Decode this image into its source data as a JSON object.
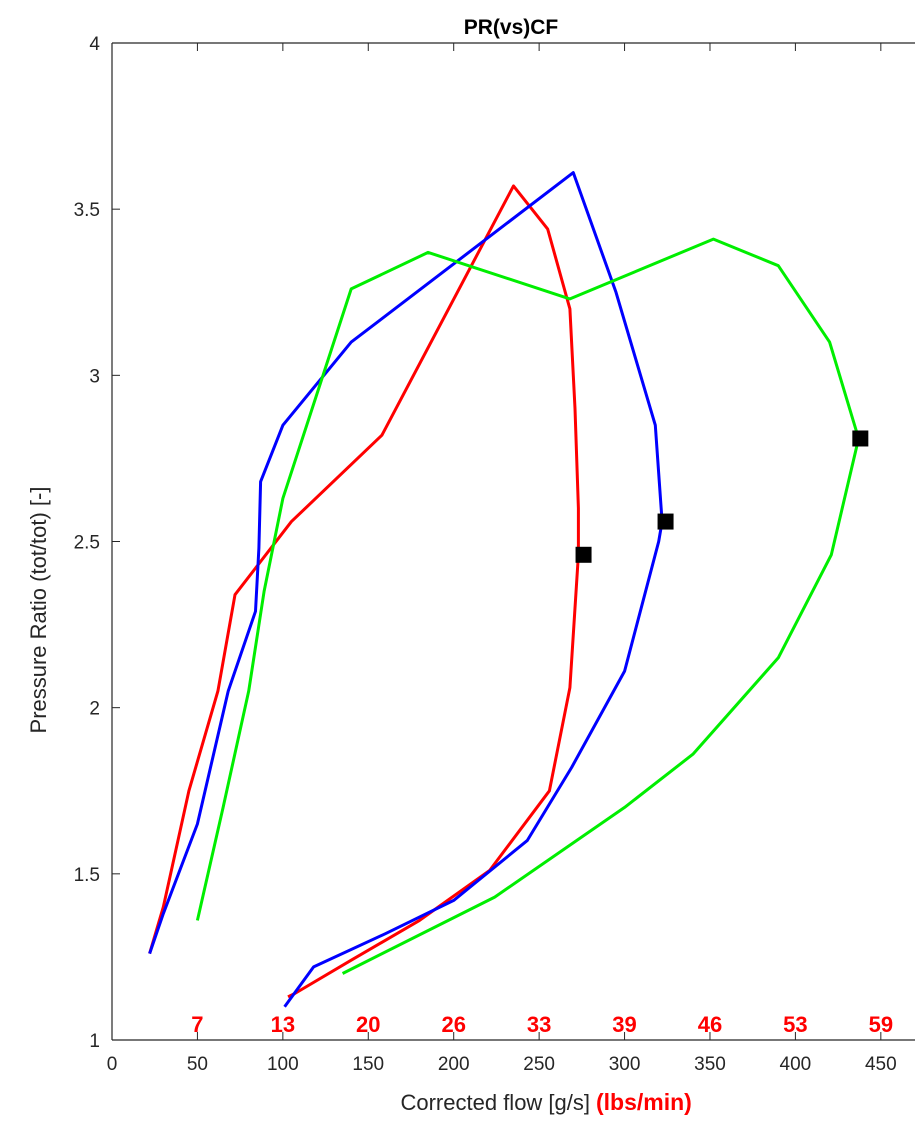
{
  "chart_data": {
    "type": "line",
    "title": "PR(vs)CF",
    "xlabel": "Corrected flow [g/s]",
    "xlabel_extra": "(lbs/min)",
    "ylabel": "Pressure Ratio (tot/tot) [-]",
    "xlim": [
      0,
      470
    ],
    "ylim": [
      1,
      4
    ],
    "xticks": [
      0,
      50,
      100,
      150,
      200,
      250,
      300,
      350,
      400,
      450
    ],
    "yticks": [
      1,
      1.5,
      2,
      2.5,
      3,
      3.5,
      4
    ],
    "grid": false,
    "secondary_x_labels": [
      {
        "x": 50,
        "text": "7"
      },
      {
        "x": 100,
        "text": "13"
      },
      {
        "x": 150,
        "text": "20"
      },
      {
        "x": 200,
        "text": "26"
      },
      {
        "x": 250,
        "text": "33"
      },
      {
        "x": 300,
        "text": "39"
      },
      {
        "x": 350,
        "text": "46"
      },
      {
        "x": 400,
        "text": "53"
      },
      {
        "x": 450,
        "text": "59"
      }
    ],
    "series": [
      {
        "color": "#ff0000",
        "points": [
          [
            22,
            1.26
          ],
          [
            30,
            1.4
          ],
          [
            45,
            1.75
          ],
          [
            62,
            2.05
          ],
          [
            72,
            2.34
          ],
          [
            105,
            2.56
          ],
          [
            158,
            2.82
          ],
          [
            235,
            3.57
          ],
          [
            255,
            3.44
          ],
          [
            268,
            3.2
          ],
          [
            271,
            2.9
          ],
          [
            273,
            2.6
          ],
          [
            273,
            2.46
          ],
          [
            268,
            2.06
          ],
          [
            256,
            1.75
          ],
          [
            221,
            1.51
          ],
          [
            180,
            1.36
          ],
          [
            140,
            1.24
          ],
          [
            107,
            1.14
          ],
          [
            103,
            1.13
          ]
        ],
        "marker": [
          276,
          2.46
        ]
      },
      {
        "color": "#0000ff",
        "points": [
          [
            22,
            1.26
          ],
          [
            30,
            1.38
          ],
          [
            50,
            1.65
          ],
          [
            68,
            2.05
          ],
          [
            84,
            2.29
          ],
          [
            86,
            2.48
          ],
          [
            87,
            2.68
          ],
          [
            100,
            2.85
          ],
          [
            140,
            3.1
          ],
          [
            270,
            3.61
          ],
          [
            295,
            3.25
          ],
          [
            318,
            2.85
          ],
          [
            322,
            2.56
          ],
          [
            320,
            2.5
          ],
          [
            300,
            2.11
          ],
          [
            269,
            1.82
          ],
          [
            243,
            1.6
          ],
          [
            200,
            1.42
          ],
          [
            160,
            1.32
          ],
          [
            118,
            1.22
          ],
          [
            101,
            1.1
          ]
        ],
        "marker": [
          324,
          2.56
        ]
      },
      {
        "color": "#00ee00",
        "points": [
          [
            50,
            1.36
          ],
          [
            65,
            1.7
          ],
          [
            80,
            2.05
          ],
          [
            89,
            2.35
          ],
          [
            100,
            2.63
          ],
          [
            140,
            3.26
          ],
          [
            185,
            3.37
          ],
          [
            268,
            3.23
          ],
          [
            352,
            3.41
          ],
          [
            390,
            3.33
          ],
          [
            420,
            3.1
          ],
          [
            437,
            2.81
          ],
          [
            421,
            2.46
          ],
          [
            390,
            2.15
          ],
          [
            340,
            1.86
          ],
          [
            300,
            1.7
          ],
          [
            224,
            1.43
          ],
          [
            135,
            1.2
          ]
        ],
        "marker": [
          438,
          2.81
        ]
      }
    ]
  }
}
